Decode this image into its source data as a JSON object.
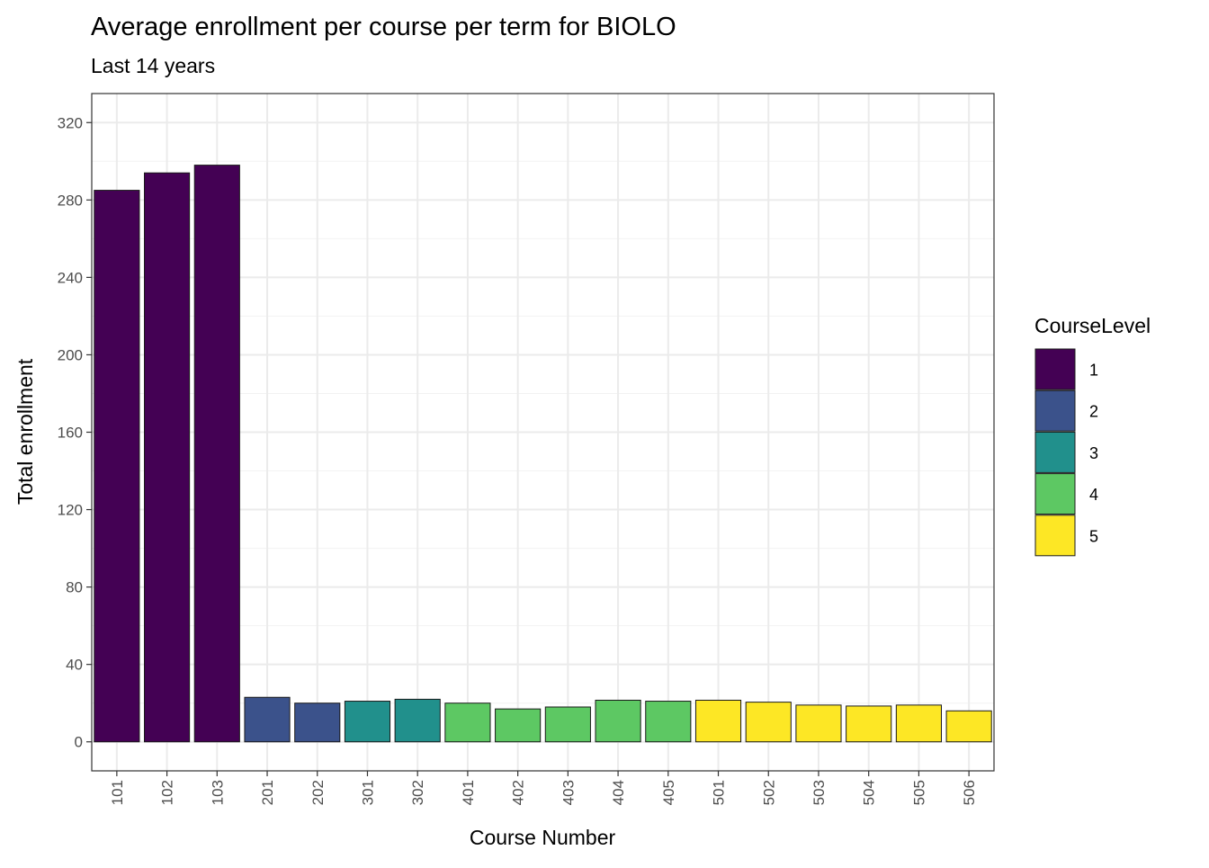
{
  "chart_data": {
    "type": "bar",
    "title": "Average enrollment per course per term for BIOLO",
    "subtitle": "Last 14 years",
    "xlabel": "Course Number",
    "ylabel": "Total enrollment",
    "ylim": [
      -15,
      335
    ],
    "yticks": [
      "0",
      "40",
      "80",
      "120",
      "160",
      "200",
      "240",
      "280",
      "320"
    ],
    "grid": true,
    "legend_position": "right",
    "legend_title": "CourseLevel",
    "categories": [
      "101",
      "102",
      "103",
      "201",
      "202",
      "301",
      "302",
      "401",
      "402",
      "403",
      "404",
      "405",
      "501",
      "502",
      "503",
      "504",
      "505",
      "506"
    ],
    "values": [
      285,
      294,
      298,
      23,
      20,
      21,
      22,
      20,
      17,
      18,
      21.5,
      21,
      21.5,
      20.5,
      19,
      18.5,
      19,
      16
    ],
    "levels": [
      "1",
      "1",
      "1",
      "2",
      "2",
      "3",
      "3",
      "4",
      "4",
      "4",
      "4",
      "4",
      "5",
      "5",
      "5",
      "5",
      "5",
      "5"
    ],
    "legend": [
      {
        "label": "1",
        "color": "#440154"
      },
      {
        "label": "2",
        "color": "#3B528B"
      },
      {
        "label": "3",
        "color": "#21908C"
      },
      {
        "label": "4",
        "color": "#5DC863"
      },
      {
        "label": "5",
        "color": "#FDE725"
      }
    ]
  }
}
